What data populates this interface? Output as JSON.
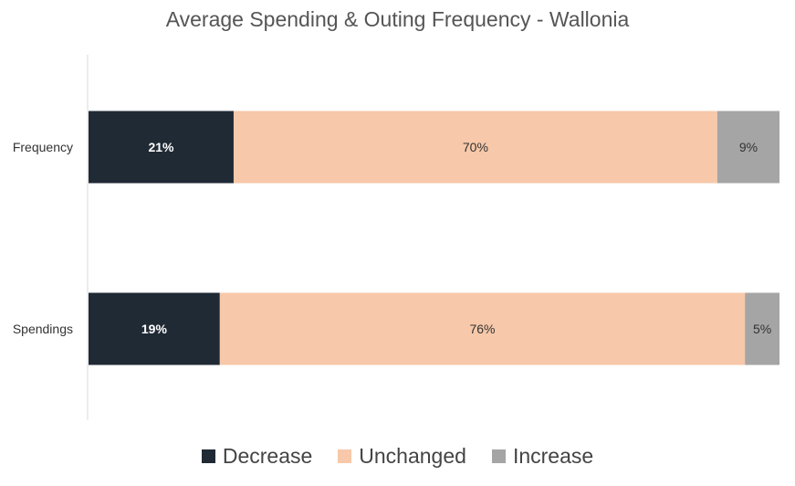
{
  "chart_data": {
    "type": "bar",
    "orientation": "horizontal",
    "stacked": true,
    "title": "Average Spending & Outing Frequency - Wallonia",
    "categories": [
      "Frequency",
      "Spendings"
    ],
    "series": [
      {
        "name": "Decrease",
        "values": [
          21,
          19
        ],
        "labels": [
          "21%",
          "19%"
        ],
        "color": "#202a35",
        "label_color": "#ffffff"
      },
      {
        "name": "Unchanged",
        "values": [
          70,
          76
        ],
        "labels": [
          "70%",
          "76%"
        ],
        "color": "#f7c8a9",
        "label_color": "#333333"
      },
      {
        "name": "Increase",
        "values": [
          9,
          5
        ],
        "labels": [
          "9%",
          "5%"
        ],
        "color": "#a5a5a5",
        "label_color": "#333333"
      }
    ],
    "xlim": [
      0,
      100
    ],
    "grid": false,
    "legend_position": "bottom"
  }
}
